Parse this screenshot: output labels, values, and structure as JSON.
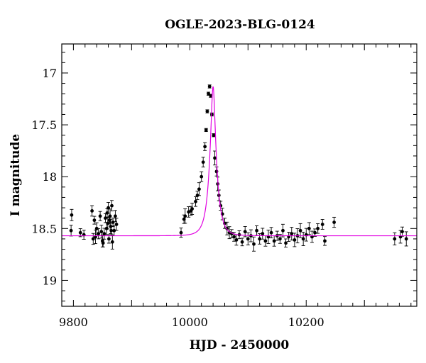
{
  "chart_data": {
    "type": "scatter",
    "title": "OGLE-2023-BLG-0124",
    "xlabel": "HJD - 2450000",
    "ylabel": "I magnitude",
    "xlim": [
      9780,
      10390
    ],
    "ylim": [
      19.25,
      16.72
    ],
    "y_inverted": true,
    "x_ticks": [
      9800,
      10000,
      10200
    ],
    "y_ticks": [
      17,
      17.5,
      18,
      18.5,
      19
    ],
    "y_tick_labels": [
      "17",
      "17.5",
      "18",
      "18.5",
      "19"
    ],
    "grid": false,
    "colors": {
      "points": "#000000",
      "model": "#e100e1",
      "frame": "#000000"
    },
    "model": {
      "type": "microlensing-paczynski",
      "baseline_mag": 18.57,
      "peak_mag": 17.13,
      "t0": 10040,
      "tE_days": 12
    },
    "series": [
      {
        "x": [
          9796,
          9797,
          9812,
          9818,
          9832,
          9834,
          9836,
          9838,
          9840,
          9843,
          9846,
          9848,
          9850,
          9851,
          9853,
          9855,
          9857,
          9858,
          9859,
          9860,
          9861,
          9862,
          9863,
          9864,
          9865,
          9866,
          9867,
          9868,
          9870,
          9872,
          9874,
          9985,
          9990,
          9992,
          9998,
          10002,
          10004,
          10010,
          10013,
          10016,
          10020,
          10023,
          10026,
          10028,
          10030,
          10032,
          10034,
          10036,
          10038,
          10041,
          10043,
          10046,
          10048,
          10050,
          10053,
          10056,
          10060,
          10064,
          10068,
          10072,
          10076,
          10080,
          10085,
          10090,
          10095,
          10100,
          10105,
          10110,
          10115,
          10120,
          10125,
          10130,
          10135,
          10140,
          10145,
          10150,
          10155,
          10160,
          10165,
          10170,
          10175,
          10180,
          10185,
          10190,
          10195,
          10200,
          10205,
          10210,
          10215,
          10220,
          10228,
          10232,
          10248,
          10352,
          10362,
          10365,
          10372
        ],
        "y": [
          18.52,
          18.37,
          18.54,
          18.56,
          18.33,
          18.6,
          18.42,
          18.58,
          18.5,
          18.55,
          18.38,
          18.53,
          18.62,
          18.64,
          18.55,
          18.4,
          18.5,
          18.35,
          18.45,
          18.3,
          18.6,
          18.42,
          18.38,
          18.48,
          18.52,
          18.28,
          18.63,
          18.44,
          18.52,
          18.38,
          18.46,
          18.54,
          18.41,
          18.38,
          18.34,
          18.33,
          18.31,
          18.24,
          18.18,
          18.12,
          18.0,
          17.86,
          17.71,
          17.55,
          17.37,
          17.2,
          17.13,
          17.22,
          17.4,
          17.6,
          17.82,
          17.95,
          18.07,
          18.18,
          18.28,
          18.36,
          18.45,
          18.5,
          18.54,
          18.55,
          18.58,
          18.61,
          18.56,
          18.63,
          18.53,
          18.6,
          18.57,
          18.65,
          18.52,
          18.6,
          18.55,
          18.62,
          18.58,
          18.54,
          18.62,
          18.57,
          18.6,
          18.52,
          18.64,
          18.58,
          18.55,
          18.61,
          18.57,
          18.52,
          18.6,
          18.56,
          18.5,
          18.58,
          18.54,
          18.5,
          18.46,
          18.62,
          18.44,
          18.6,
          18.58,
          18.53,
          18.6
        ]
      }
    ]
  }
}
